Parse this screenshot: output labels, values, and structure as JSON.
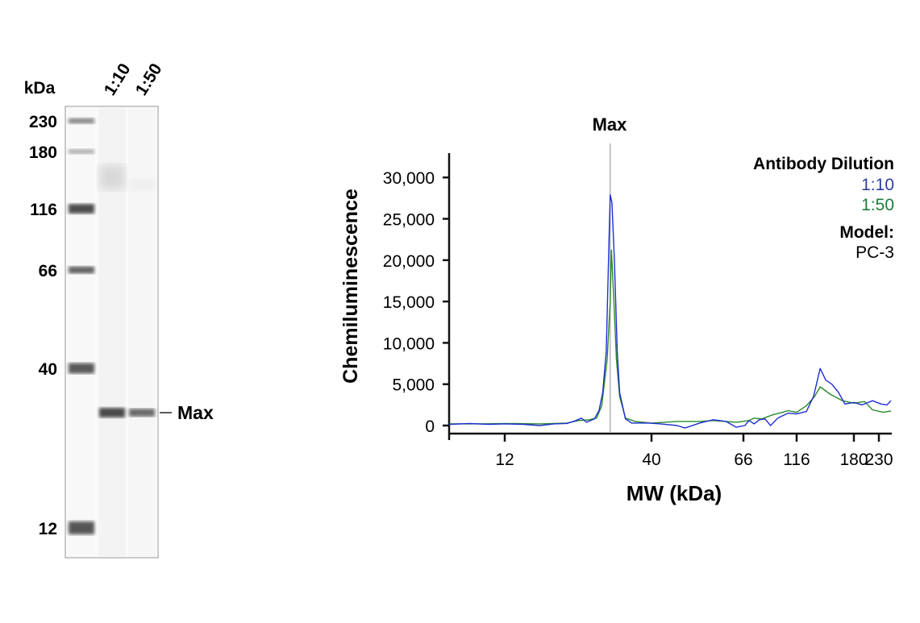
{
  "blot": {
    "unit_label": "kDa",
    "lane_labels": [
      "1:10",
      "1:50"
    ],
    "marker_labels": [
      "230",
      "180",
      "116",
      "66",
      "40",
      "12"
    ],
    "band_label": "Max"
  },
  "chart_data": {
    "type": "line",
    "title": "",
    "peak_label": "Max",
    "peak_position_kda": 28.5,
    "xlabel": "MW (kDa)",
    "ylabel": "Chemiluminescence",
    "x_scale": "calibrated-log",
    "x_ticks": [
      12,
      40,
      66,
      116,
      180,
      230
    ],
    "x_tick_labels": [
      "12",
      "40",
      "66",
      "116",
      "180",
      "230"
    ],
    "xlim": [
      7.6,
      259
    ],
    "ylim": [
      -1000,
      32500
    ],
    "y_ticks": [
      0,
      5000,
      10000,
      15000,
      20000,
      25000,
      30000
    ],
    "y_tick_labels": [
      "0",
      "5,000",
      "10,000",
      "15,000",
      "20,000",
      "25,000",
      "30,000"
    ],
    "grid": false,
    "legend": {
      "placement": "top-right",
      "title": "Antibody Dilution",
      "model_title": "Model:",
      "model_value": "PC-3"
    },
    "series": [
      {
        "name": "1:10",
        "color": "#1f2fd0",
        "label_color": "#2e3f9a",
        "points": [
          [
            7.6,
            150
          ],
          [
            9,
            250
          ],
          [
            10.5,
            150
          ],
          [
            12,
            200
          ],
          [
            14,
            150
          ],
          [
            16,
            0
          ],
          [
            18,
            200
          ],
          [
            20,
            250
          ],
          [
            21.5,
            600
          ],
          [
            22.5,
            900
          ],
          [
            23.5,
            400
          ],
          [
            25,
            800
          ],
          [
            26,
            1800
          ],
          [
            26.8,
            4000
          ],
          [
            27.6,
            9000
          ],
          [
            28.2,
            22000
          ],
          [
            28.5,
            27900
          ],
          [
            28.9,
            27000
          ],
          [
            29.5,
            20000
          ],
          [
            30.2,
            9000
          ],
          [
            30.8,
            4000
          ],
          [
            32.3,
            800
          ],
          [
            34,
            300
          ],
          [
            39,
            300
          ],
          [
            42,
            200
          ],
          [
            46,
            0
          ],
          [
            48,
            -300
          ],
          [
            52,
            300
          ],
          [
            56,
            700
          ],
          [
            60,
            500
          ],
          [
            63.5,
            -200
          ],
          [
            67,
            0
          ],
          [
            70,
            600
          ],
          [
            74,
            200
          ],
          [
            78,
            700
          ],
          [
            83,
            800
          ],
          [
            88,
            0
          ],
          [
            95,
            900
          ],
          [
            106,
            1500
          ],
          [
            116,
            1400
          ],
          [
            125,
            1700
          ],
          [
            132,
            3500
          ],
          [
            139,
            6900
          ],
          [
            145,
            5500
          ],
          [
            152,
            5000
          ],
          [
            160,
            4000
          ],
          [
            168,
            2600
          ],
          [
            180,
            2800
          ],
          [
            195,
            2500
          ],
          [
            216,
            3000
          ],
          [
            235,
            2600
          ],
          [
            249,
            2500
          ],
          [
            259,
            3000
          ]
        ]
      },
      {
        "name": "1:50",
        "color": "#2a8a2a",
        "label_color": "#1e7b3a",
        "points": [
          [
            7.6,
            200
          ],
          [
            10,
            200
          ],
          [
            12,
            250
          ],
          [
            16,
            200
          ],
          [
            20,
            300
          ],
          [
            22,
            600
          ],
          [
            24,
            700
          ],
          [
            25.5,
            900
          ],
          [
            26.6,
            2400
          ],
          [
            27.8,
            8000
          ],
          [
            28.5,
            15000
          ],
          [
            28.8,
            21200
          ],
          [
            29.3,
            16000
          ],
          [
            30,
            8000
          ],
          [
            30.8,
            3500
          ],
          [
            32.3,
            900
          ],
          [
            35,
            500
          ],
          [
            40,
            300
          ],
          [
            46,
            500
          ],
          [
            52,
            500
          ],
          [
            56,
            600
          ],
          [
            63.5,
            400
          ],
          [
            70,
            600
          ],
          [
            74,
            900
          ],
          [
            80,
            800
          ],
          [
            90,
            1300
          ],
          [
            100,
            1600
          ],
          [
            106,
            1800
          ],
          [
            116,
            1600
          ],
          [
            125,
            2400
          ],
          [
            133,
            3500
          ],
          [
            139,
            4680
          ],
          [
            150,
            3800
          ],
          [
            165,
            3000
          ],
          [
            180,
            2700
          ],
          [
            200,
            2900
          ],
          [
            216,
            1900
          ],
          [
            240,
            1600
          ],
          [
            259,
            1750
          ]
        ]
      }
    ]
  }
}
